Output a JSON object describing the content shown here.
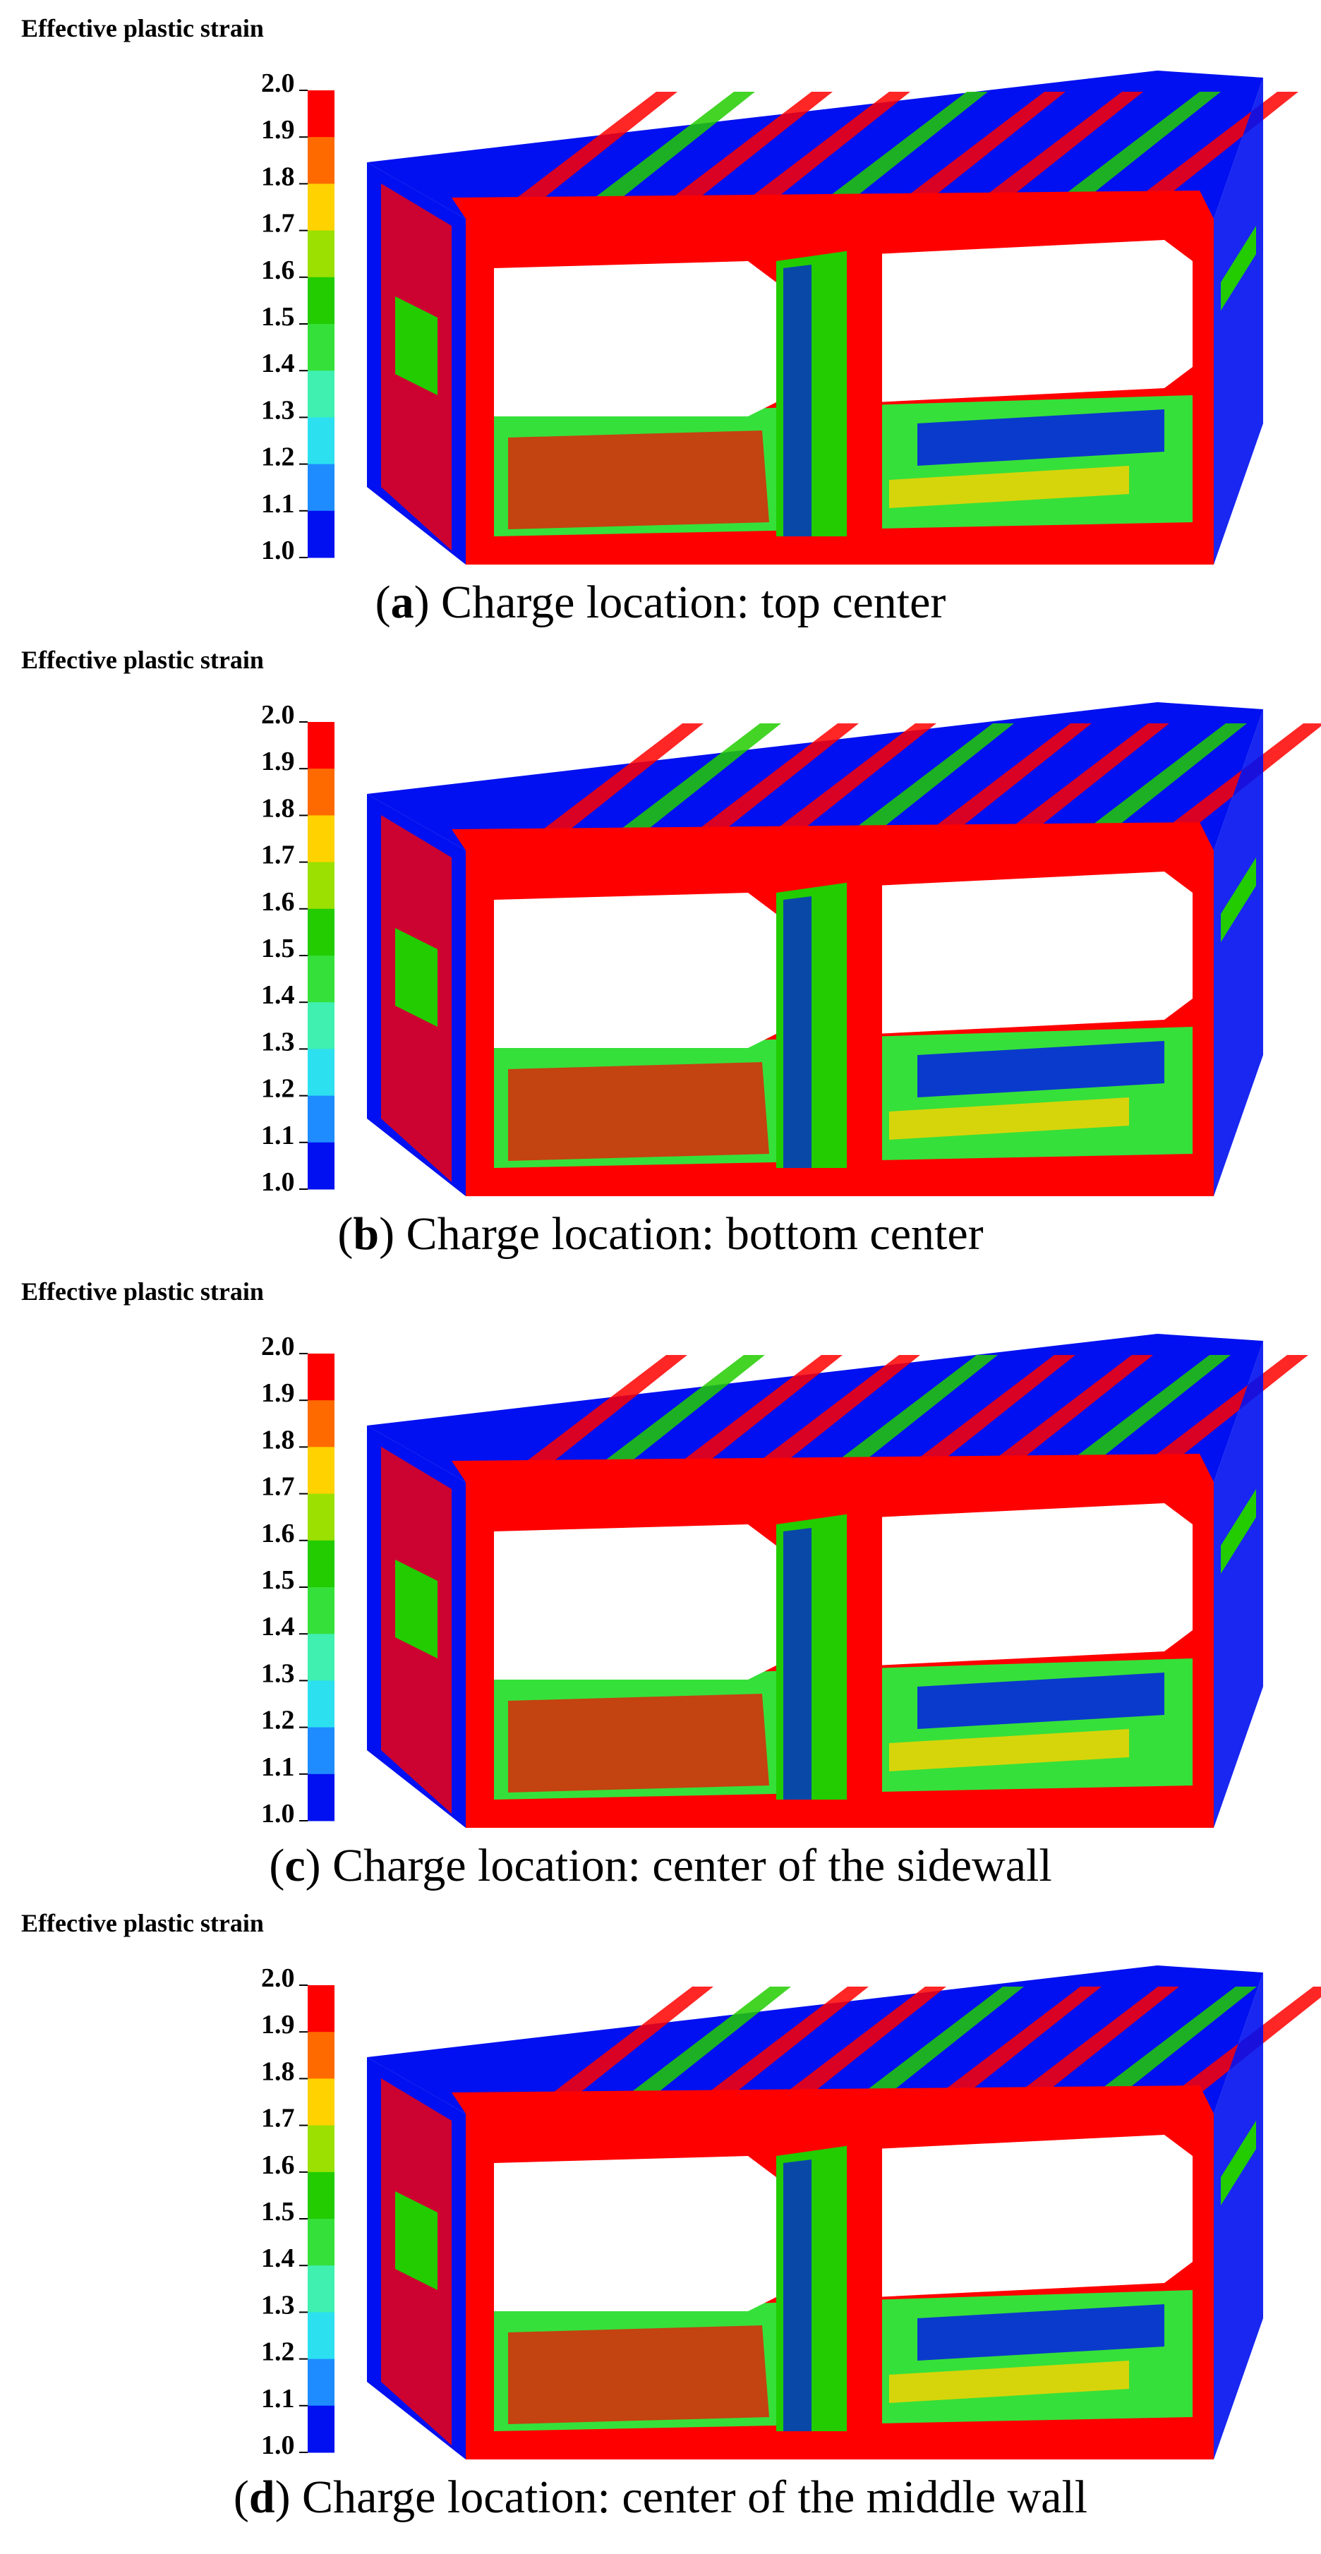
{
  "colorbar_colors": [
    "#ff0000",
    "#ff6a00",
    "#ffd200",
    "#9be000",
    "#22cc00",
    "#36e03a",
    "#3ff0b0",
    "#2ce0f0",
    "#1e8cff",
    "#0010f0"
  ],
  "panels": [
    {
      "legend_title": "Effective plastic strain",
      "ticks": [
        "2.0",
        "1.9",
        "1.8",
        "1.7",
        "1.6",
        "1.5",
        "1.4",
        "1.3",
        "1.2",
        "1.1",
        "1.0"
      ],
      "caption": [
        "(",
        "a",
        ") Charge location: top center"
      ]
    },
    {
      "legend_title": "Effective plastic strain",
      "ticks": [
        "2.0",
        "1.9",
        "1.8",
        "1.7",
        "1.6",
        "1.5",
        "1.4",
        "1.3",
        "1.2",
        "1.1",
        "1.0"
      ],
      "caption": [
        "(",
        "b",
        ") Charge location: bottom center"
      ]
    },
    {
      "legend_title": "Effective plastic strain",
      "ticks": [
        "2.0",
        "1.9",
        "1.8",
        "1.7",
        "1.6",
        "1.5",
        "1.4",
        "1.3",
        "1.2",
        "1.1",
        "1.0"
      ],
      "caption": [
        "(",
        "c",
        ") Charge location: center of the sidewall"
      ]
    },
    {
      "legend_title": "Effective plastic strain",
      "ticks": [
        "2.0",
        "1.9",
        "1.8",
        "1.7",
        "1.6",
        "1.5",
        "1.4",
        "1.3",
        "1.2",
        "1.1",
        "1.0"
      ],
      "caption": [
        "(",
        "d",
        ") Charge location: center of the middle wall"
      ]
    }
  ]
}
